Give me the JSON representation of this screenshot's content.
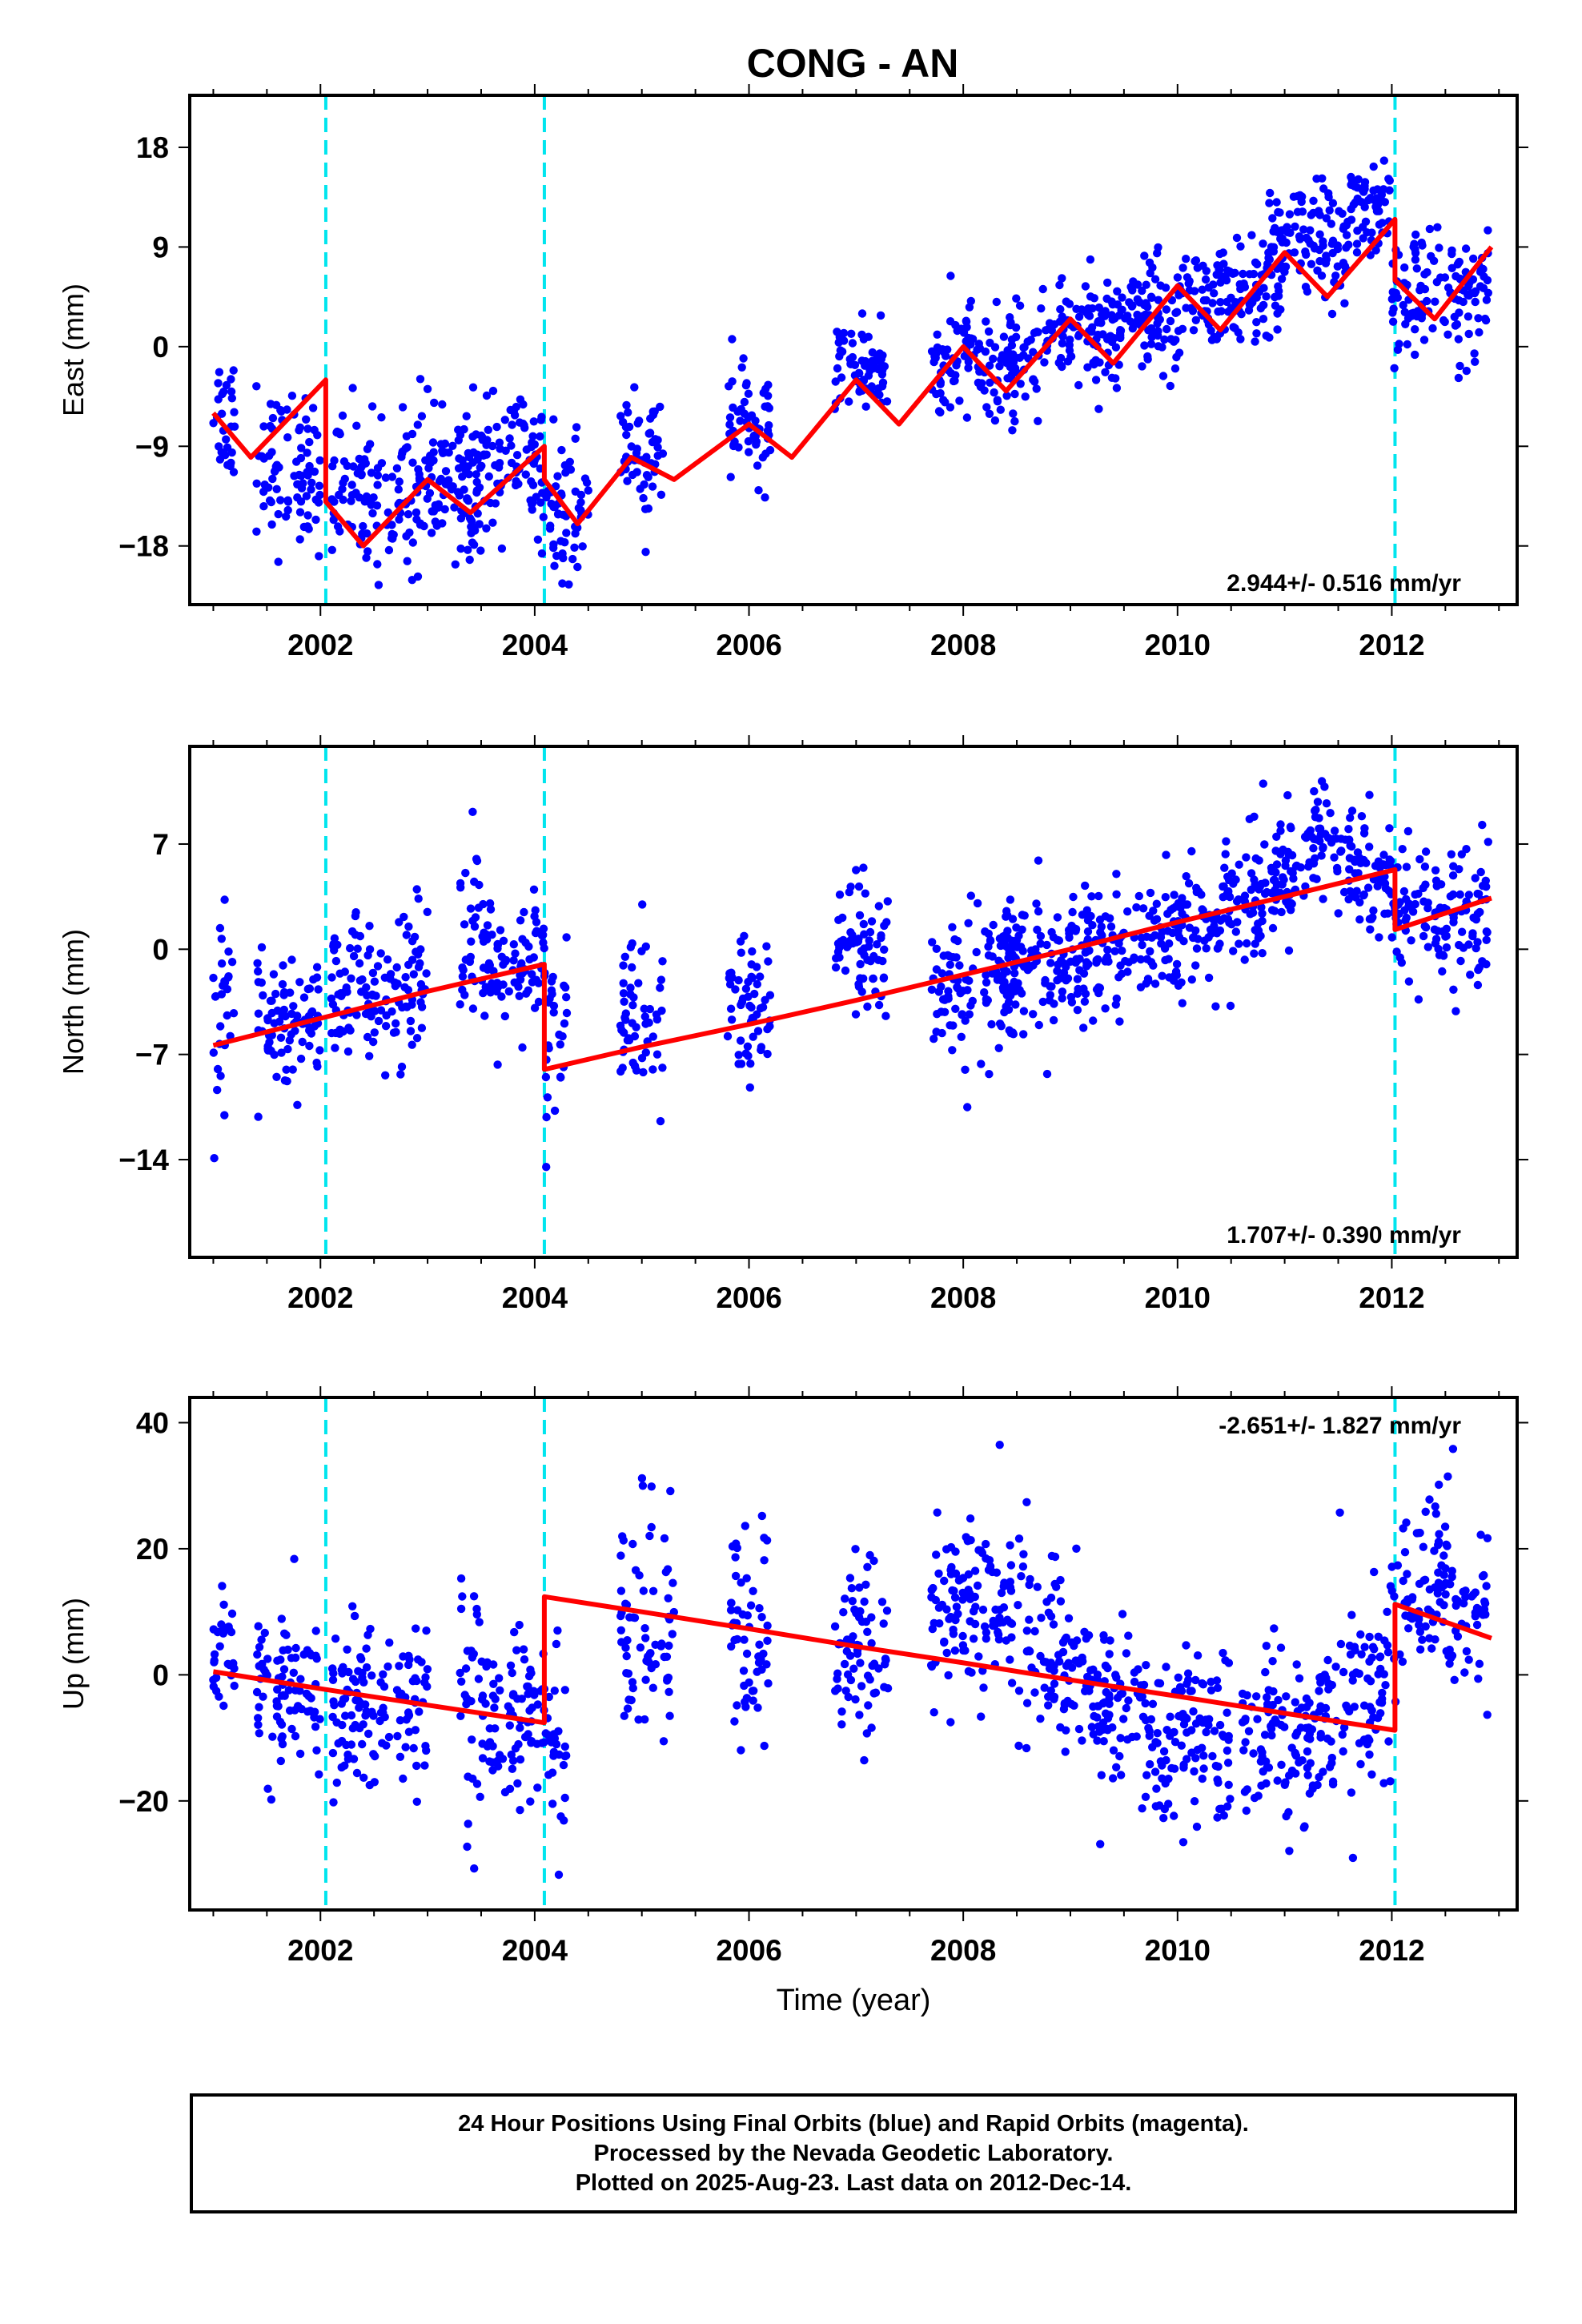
{
  "title": "CONG - AN",
  "xlabel": "Time (year)",
  "footer": {
    "line1": "24 Hour Positions Using Final Orbits (blue) and Rapid Orbits (magenta).",
    "line2": "Processed by the Nevada Geodetic Laboratory.",
    "line3": "Plotted on 2025-Aug-23. Last data on 2012-Dec-14."
  },
  "colors": {
    "points": "#0000ff",
    "model": "#ff0000",
    "steps": "#00e5ee",
    "frame": "#000000"
  },
  "chart_data": [
    {
      "type": "scatter",
      "ylabel": "East (mm)",
      "rate_label": "2.944+/- 0.516 mm/yr",
      "xlim": [
        2000.78,
        2013.17
      ],
      "ylim": [
        -23.3,
        22.7
      ],
      "yticks": [
        -18,
        -9,
        0,
        9,
        18
      ],
      "xticks": [
        2002,
        2004,
        2006,
        2008,
        2010,
        2012
      ],
      "steps": [
        2002.05,
        2004.09,
        2012.03
      ],
      "rate": 2.944,
      "model": {
        "anchor_year": 2007.0,
        "anchor_value": -4.7,
        "amplitude": 3.0,
        "step_values": [
          -11.0,
          -2.0,
          -6.0
        ],
        "points": [
          [
            2001.0,
            -6.0
          ],
          [
            2001.35,
            -10.0
          ],
          [
            2002.05,
            -3.0
          ],
          [
            2002.05,
            -14.0
          ],
          [
            2002.4,
            -18.0
          ],
          [
            2003.0,
            -12.0
          ],
          [
            2003.4,
            -15.0
          ],
          [
            2004.09,
            -9.0
          ],
          [
            2004.09,
            -12.0
          ],
          [
            2004.4,
            -16.0
          ],
          [
            2004.9,
            -10.0
          ],
          [
            2005.3,
            -12.0
          ],
          [
            2006.0,
            -7.0
          ],
          [
            2006.4,
            -10.0
          ],
          [
            2007.0,
            -3.0
          ],
          [
            2007.4,
            -7.0
          ],
          [
            2008.0,
            0.0
          ],
          [
            2008.4,
            -4.0
          ],
          [
            2009.0,
            2.5
          ],
          [
            2009.4,
            -1.5
          ],
          [
            2010.0,
            5.5
          ],
          [
            2010.4,
            1.5
          ],
          [
            2011.0,
            8.5
          ],
          [
            2011.4,
            4.5
          ],
          [
            2012.03,
            11.5
          ],
          [
            2012.03,
            6.0
          ],
          [
            2012.4,
            2.5
          ],
          [
            2012.93,
            9.0
          ]
        ]
      },
      "series": [
        {
          "name": "Final Orbits",
          "segments": [
            [
              2001.0,
              2001.2,
              -6.0,
              3.0
            ],
            [
              2001.4,
              2002.0,
              -11.0,
              3.5
            ],
            [
              2002.1,
              2003.0,
              -13.0,
              3.5
            ],
            [
              2003.0,
              2003.5,
              -12.0,
              3.0
            ],
            [
              2003.3,
              2003.5,
              -14.0,
              3.5
            ],
            [
              2003.5,
              2004.1,
              -11.0,
              3.0
            ],
            [
              2004.1,
              2004.5,
              -15.0,
              3.5
            ],
            [
              2004.8,
              2005.2,
              -10.0,
              3.0
            ],
            [
              2005.8,
              2006.2,
              -7.0,
              2.5
            ],
            [
              2006.8,
              2007.3,
              -2.0,
              2.0
            ],
            [
              2007.7,
              2008.7,
              -1.5,
              2.5
            ],
            [
              2008.7,
              2009.5,
              1.5,
              2.5
            ],
            [
              2009.5,
              2010.0,
              3.0,
              2.5
            ],
            [
              2010.0,
              2010.5,
              4.0,
              2.5
            ],
            [
              2010.5,
              2011.0,
              4.5,
              2.5
            ],
            [
              2010.8,
              2011.6,
              9.5,
              2.5
            ],
            [
              2011.6,
              2012.0,
              12.5,
              2.0
            ],
            [
              2012.0,
              2012.9,
              4.5,
              2.8
            ]
          ]
        }
      ]
    },
    {
      "type": "scatter",
      "ylabel": "North (mm)",
      "rate_label": "1.707+/- 0.390 mm/yr",
      "xlim": [
        2000.78,
        2013.17
      ],
      "ylim": [
        -20.5,
        13.5
      ],
      "yticks": [
        -14,
        -7,
        0,
        7
      ],
      "xticks": [
        2002,
        2004,
        2006,
        2008,
        2010,
        2012
      ],
      "steps": [
        2002.05,
        2004.09,
        2012.03
      ],
      "rate": 1.707,
      "model": {
        "anchor_year": 2007.0,
        "anchor_value": -3.4,
        "amplitude": 0.9,
        "step_values": [
          0.0,
          -7.0,
          -4.0
        ],
        "points": [
          [
            2001.0,
            -6.4
          ],
          [
            2002.0,
            -4.6
          ],
          [
            2003.0,
            -2.8
          ],
          [
            2004.09,
            -1.0
          ],
          [
            2004.09,
            -8.0
          ],
          [
            2005.0,
            -6.5
          ],
          [
            2006.0,
            -5.0
          ],
          [
            2007.0,
            -3.4
          ],
          [
            2008.0,
            -1.7
          ],
          [
            2009.0,
            0.0
          ],
          [
            2010.0,
            1.8
          ],
          [
            2011.0,
            3.5
          ],
          [
            2012.03,
            5.3
          ],
          [
            2012.03,
            1.3
          ],
          [
            2012.93,
            3.4
          ]
        ]
      },
      "series": [
        {
          "name": "Final Orbits",
          "segments": [
            [
              2001.0,
              2001.2,
              -4.0,
              3.5
            ],
            [
              2001.4,
              2002.0,
              -4.5,
              2.0
            ],
            [
              2002.1,
              2003.0,
              -2.5,
              2.5
            ],
            [
              2003.3,
              2003.5,
              1.0,
              3.0
            ],
            [
              2003.5,
              2004.1,
              -1.5,
              2.5
            ],
            [
              2004.1,
              2004.3,
              -6.0,
              3.5
            ],
            [
              2004.8,
              2005.2,
              -4.5,
              3.0
            ],
            [
              2005.8,
              2006.2,
              -4.0,
              2.5
            ],
            [
              2006.8,
              2007.3,
              0.0,
              2.5
            ],
            [
              2007.7,
              2008.5,
              -3.0,
              2.5
            ],
            [
              2008.3,
              2009.0,
              -1.0,
              2.2
            ],
            [
              2009.0,
              2009.7,
              0.0,
              2.0
            ],
            [
              2009.7,
              2010.4,
              1.5,
              2.0
            ],
            [
              2010.4,
              2010.8,
              3.0,
              2.0
            ],
            [
              2010.7,
              2011.2,
              5.0,
              2.2
            ],
            [
              2011.2,
              2011.5,
              7.5,
              2.0
            ],
            [
              2011.5,
              2012.0,
              5.0,
              2.0
            ],
            [
              2012.0,
              2012.9,
              2.5,
              2.2
            ]
          ]
        }
      ]
    },
    {
      "type": "scatter",
      "ylabel": "Up (mm)",
      "rate_label": "-2.651+/- 1.827 mm/yr",
      "xlim": [
        2000.78,
        2013.17
      ],
      "ylim": [
        -37.3,
        44.0
      ],
      "yticks": [
        -20,
        0,
        20,
        40
      ],
      "xticks": [
        2002,
        2004,
        2006,
        2008,
        2010,
        2012
      ],
      "steps": [
        2002.05,
        2004.09,
        2012.03
      ],
      "rate": -2.651,
      "model": {
        "anchor_year": 2007.0,
        "anchor_value": 4.5,
        "amplitude": 1.0,
        "step_values": [
          0.0,
          20.0,
          20.0
        ],
        "points": [
          [
            2001.0,
            0.5
          ],
          [
            2002.0,
            -2.2
          ],
          [
            2003.0,
            -4.8
          ],
          [
            2004.09,
            -7.6
          ],
          [
            2004.09,
            12.4
          ],
          [
            2005.0,
            10.0
          ],
          [
            2006.0,
            7.3
          ],
          [
            2007.0,
            4.5
          ],
          [
            2008.0,
            1.9
          ],
          [
            2009.0,
            -0.8
          ],
          [
            2010.0,
            -3.4
          ],
          [
            2011.0,
            -6.1
          ],
          [
            2012.03,
            -8.8
          ],
          [
            2012.03,
            11.2
          ],
          [
            2012.93,
            5.8
          ]
        ]
      },
      "series": [
        {
          "name": "Final Orbits",
          "segments": [
            [
              2001.0,
              2001.2,
              2.0,
              6.0
            ],
            [
              2001.4,
              2002.0,
              -3.0,
              6.0
            ],
            [
              2002.1,
              2003.0,
              -5.0,
              7.0
            ],
            [
              2003.3,
              2003.5,
              -3.0,
              12.0
            ],
            [
              2003.5,
              2004.1,
              -7.0,
              6.0
            ],
            [
              2004.1,
              2004.3,
              -12.0,
              8.0
            ],
            [
              2004.8,
              2005.3,
              8.0,
              10.0
            ],
            [
              2005.8,
              2006.2,
              5.0,
              9.0
            ],
            [
              2006.8,
              2007.3,
              4.0,
              9.0
            ],
            [
              2007.7,
              2008.7,
              10.0,
              7.0
            ],
            [
              2008.7,
              2009.2,
              2.0,
              7.0
            ],
            [
              2009.2,
              2009.7,
              -5.0,
              7.0
            ],
            [
              2009.7,
              2010.5,
              -10.0,
              7.0
            ],
            [
              2010.6,
              2011.3,
              -10.0,
              7.0
            ],
            [
              2011.3,
              2012.0,
              -4.0,
              9.0
            ],
            [
              2012.0,
              2012.9,
              12.0,
              8.0
            ]
          ]
        }
      ]
    }
  ]
}
